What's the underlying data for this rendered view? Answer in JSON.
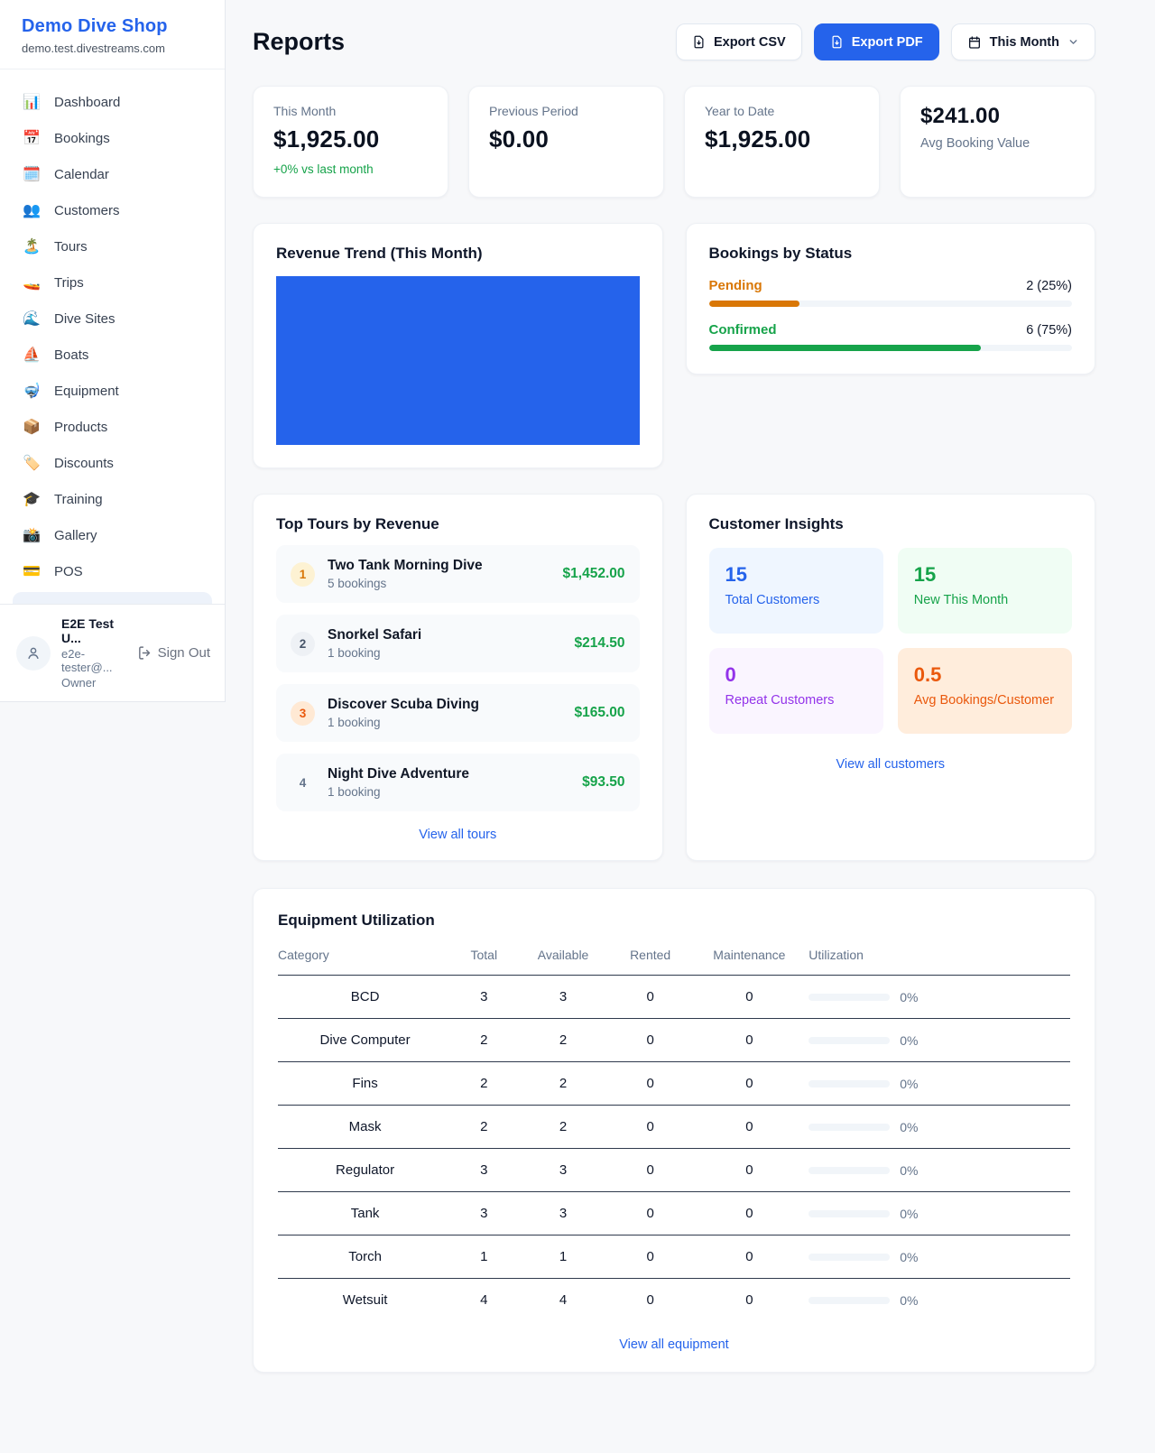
{
  "colors": {
    "accent_blue": "#2563eb",
    "green": "#16a34a",
    "amber": "#d97706",
    "deep_orange": "#ea580c",
    "purple": "#9333ea"
  },
  "sidebar": {
    "shop_name": "Demo Dive Shop",
    "shop_domain": "demo.test.divestreams.com",
    "nav": [
      {
        "icon": "📊",
        "label": "Dashboard"
      },
      {
        "icon": "📅",
        "label": "Bookings"
      },
      {
        "icon": "🗓️",
        "label": "Calendar"
      },
      {
        "icon": "👥",
        "label": "Customers"
      },
      {
        "icon": "🏝️",
        "label": "Tours"
      },
      {
        "icon": "🚤",
        "label": "Trips"
      },
      {
        "icon": "🌊",
        "label": "Dive Sites"
      },
      {
        "icon": "⛵",
        "label": "Boats"
      },
      {
        "icon": "🤿",
        "label": "Equipment"
      },
      {
        "icon": "📦",
        "label": "Products"
      },
      {
        "icon": "🏷️",
        "label": "Discounts"
      },
      {
        "icon": "🎓",
        "label": "Training"
      },
      {
        "icon": "📸",
        "label": "Gallery"
      },
      {
        "icon": "💳",
        "label": "POS"
      }
    ],
    "user": {
      "name": "E2E Test U...",
      "email": "e2e-tester@...",
      "role": "Owner",
      "sign_out_label": "Sign Out"
    }
  },
  "header": {
    "title": "Reports",
    "export_csv_label": "Export CSV",
    "export_pdf_label": "Export PDF",
    "period_label": "This Month"
  },
  "stats": {
    "this_month": {
      "label": "This Month",
      "value": "$1,925.00",
      "change": "+0% vs last month"
    },
    "previous_period": {
      "label": "Previous Period",
      "value": "$0.00"
    },
    "year_to_date": {
      "label": "Year to Date",
      "value": "$1,925.00"
    },
    "avg_booking": {
      "value": "$241.00",
      "label": "Avg Booking Value"
    }
  },
  "revenue_trend": {
    "title": "Revenue Trend (This Month)"
  },
  "bookings_by_status": {
    "title": "Bookings by Status",
    "rows": [
      {
        "label": "Pending",
        "count_text": "2 (25%)",
        "pct": 25
      },
      {
        "label": "Confirmed",
        "count_text": "6 (75%)",
        "pct": 75
      }
    ]
  },
  "top_tours": {
    "title": "Top Tours by Revenue",
    "items": [
      {
        "rank": "1",
        "name": "Two Tank Morning Dive",
        "bookings": "5 bookings",
        "amount": "$1,452.00"
      },
      {
        "rank": "2",
        "name": "Snorkel Safari",
        "bookings": "1 booking",
        "amount": "$214.50"
      },
      {
        "rank": "3",
        "name": "Discover Scuba Diving",
        "bookings": "1 booking",
        "amount": "$165.00"
      },
      {
        "rank": "4",
        "name": "Night Dive Adventure",
        "bookings": "1 booking",
        "amount": "$93.50"
      }
    ],
    "view_all": "View all tours"
  },
  "customer_insights": {
    "title": "Customer Insights",
    "tiles": [
      {
        "value": "15",
        "label": "Total Customers"
      },
      {
        "value": "15",
        "label": "New This Month"
      },
      {
        "value": "0",
        "label": "Repeat Customers"
      },
      {
        "value": "0.5",
        "label": "Avg Bookings/Customer"
      }
    ],
    "view_all": "View all customers"
  },
  "equipment": {
    "title": "Equipment Utilization",
    "columns": {
      "category": "Category",
      "total": "Total",
      "available": "Available",
      "rented": "Rented",
      "maintenance": "Maintenance",
      "utilization": "Utilization"
    },
    "rows": [
      {
        "category": "BCD",
        "total": "3",
        "available": "3",
        "rented": "0",
        "maintenance": "0",
        "utilization": "0%",
        "pct": 0
      },
      {
        "category": "Dive Computer",
        "total": "2",
        "available": "2",
        "rented": "0",
        "maintenance": "0",
        "utilization": "0%",
        "pct": 0
      },
      {
        "category": "Fins",
        "total": "2",
        "available": "2",
        "rented": "0",
        "maintenance": "0",
        "utilization": "0%",
        "pct": 0
      },
      {
        "category": "Mask",
        "total": "2",
        "available": "2",
        "rented": "0",
        "maintenance": "0",
        "utilization": "0%",
        "pct": 0
      },
      {
        "category": "Regulator",
        "total": "3",
        "available": "3",
        "rented": "0",
        "maintenance": "0",
        "utilization": "0%",
        "pct": 0
      },
      {
        "category": "Tank",
        "total": "3",
        "available": "3",
        "rented": "0",
        "maintenance": "0",
        "utilization": "0%",
        "pct": 0
      },
      {
        "category": "Torch",
        "total": "1",
        "available": "1",
        "rented": "0",
        "maintenance": "0",
        "utilization": "0%",
        "pct": 0
      },
      {
        "category": "Wetsuit",
        "total": "4",
        "available": "4",
        "rented": "0",
        "maintenance": "0",
        "utilization": "0%",
        "pct": 0
      }
    ],
    "view_all": "View all equipment"
  }
}
